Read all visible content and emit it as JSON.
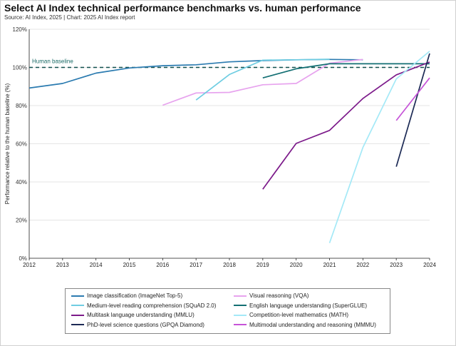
{
  "title": "Select AI Index technical performance benchmarks vs. human performance",
  "subtitle": "Source: AI Index, 2025 | Chart: 2025 AI Index report",
  "chart_data": {
    "type": "line",
    "ylabel": "Performance relative to the human baseline (%)",
    "xlabel": "",
    "xlim": [
      2012,
      2024
    ],
    "ylim": [
      0,
      120
    ],
    "x_ticks": [
      "2012",
      "2013",
      "2014",
      "2015",
      "2016",
      "2017",
      "2018",
      "2019",
      "2020",
      "2021",
      "2022",
      "2023",
      "2024"
    ],
    "y_ticks": [
      "0%",
      "20%",
      "40%",
      "60%",
      "80%",
      "100%",
      "120%"
    ],
    "baseline": {
      "label": "Human baseline",
      "value": 100
    },
    "grid": "horizontal",
    "legend_position": "bottom",
    "series": [
      {
        "name": "Image classification (ImageNet Top-5)",
        "color": "#2b7bb0",
        "points": [
          [
            2012,
            89.2
          ],
          [
            2013,
            91.6
          ],
          [
            2014,
            97.0
          ],
          [
            2015,
            99.7
          ],
          [
            2016,
            100.9
          ],
          [
            2017,
            101.4
          ],
          [
            2018,
            102.9
          ],
          [
            2019,
            103.6
          ],
          [
            2020,
            104.0
          ],
          [
            2021,
            104.2
          ],
          [
            2022,
            104.0
          ]
        ]
      },
      {
        "name": "Visual reasoning (VQA)",
        "color": "#e7a3ee",
        "points": [
          [
            2016,
            80.2
          ],
          [
            2017,
            86.6
          ],
          [
            2018,
            86.9
          ],
          [
            2019,
            90.9
          ],
          [
            2020,
            91.6
          ],
          [
            2021,
            102.2
          ],
          [
            2022,
            104.2
          ]
        ]
      },
      {
        "name": "Medium-level reading comprehension (SQuAD 2.0)",
        "color": "#6fcde2",
        "points": [
          [
            2017,
            82.9
          ],
          [
            2018,
            96.3
          ],
          [
            2019,
            103.8
          ],
          [
            2020,
            104.0
          ],
          [
            2021,
            104.3
          ]
        ]
      },
      {
        "name": "English language understanding (SuperGLUE)",
        "color": "#136f73",
        "points": [
          [
            2019,
            94.5
          ],
          [
            2020,
            99.3
          ],
          [
            2021,
            101.9
          ],
          [
            2022,
            101.9
          ],
          [
            2023,
            101.9
          ],
          [
            2024,
            101.9
          ]
        ]
      },
      {
        "name": "Multitask language understanding (MMLU)",
        "color": "#7c1a8a",
        "points": [
          [
            2019,
            36.2
          ],
          [
            2020,
            60.2
          ],
          [
            2021,
            67.0
          ],
          [
            2022,
            83.7
          ],
          [
            2023,
            96.1
          ],
          [
            2024,
            102.8
          ]
        ]
      },
      {
        "name": "Competition-level mathematics (MATH)",
        "color": "#a4e9f7",
        "points": [
          [
            2021,
            8.0
          ],
          [
            2022,
            58.0
          ],
          [
            2023,
            94.0
          ],
          [
            2024,
            108.5
          ]
        ]
      },
      {
        "name": "PhD-level science questions (GPQA Diamond)",
        "color": "#1c2a55",
        "points": [
          [
            2023,
            48.0
          ],
          [
            2024,
            107.3
          ]
        ]
      },
      {
        "name": "Multimodal understanding and reasoning (MMMU)",
        "color": "#c653d8",
        "points": [
          [
            2023,
            72.2
          ],
          [
            2024,
            94.5
          ]
        ]
      }
    ]
  },
  "legend_layout": [
    "Image classification (ImageNet Top-5)",
    "Visual reasoning (VQA)",
    "Medium-level reading comprehension (SQuAD 2.0)",
    "English language understanding (SuperGLUE)",
    "Multitask language understanding (MMLU)",
    "Competition-level mathematics (MATH)",
    "PhD-level science questions (GPQA Diamond)",
    "Multimodal understanding and reasoning (MMMU)"
  ]
}
